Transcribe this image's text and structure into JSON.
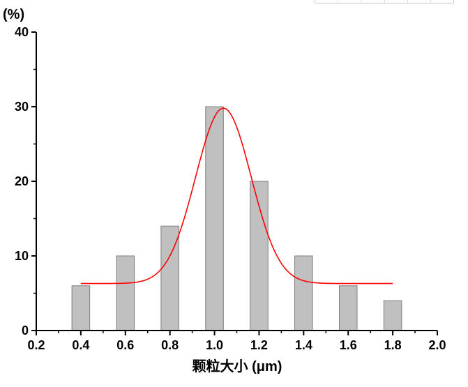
{
  "chart_data": {
    "type": "bar",
    "x_unit_label": "(%)",
    "y_tick_labels": [
      "0",
      "10",
      "20",
      "30",
      "40"
    ],
    "x_tick_labels": [
      "0.2",
      "0.4",
      "0.6",
      "0.8",
      "1.0",
      "1.2",
      "1.4",
      "1.6",
      "1.8",
      "2.0"
    ],
    "xlabel": "颗粒大小 (μm)",
    "ylabel": "(%)",
    "xlim": [
      0.2,
      2.0
    ],
    "ylim": [
      0,
      40
    ],
    "bars": {
      "x": [
        0.4,
        0.6,
        0.8,
        1.0,
        1.2,
        1.4,
        1.6,
        1.8
      ],
      "values": [
        6,
        10,
        14,
        30,
        20,
        10,
        6,
        4
      ],
      "width": 0.08,
      "color": "#c0c0c0",
      "edge_color": "#7f7f7f"
    },
    "fit_curve": {
      "type": "gaussian",
      "baseline": 6.3,
      "center": 1.04,
      "amplitude": 23.5,
      "sigma": 0.125,
      "x_range": [
        0.4,
        1.8
      ],
      "color": "#ff0000"
    },
    "grid": false,
    "legend": "none"
  }
}
